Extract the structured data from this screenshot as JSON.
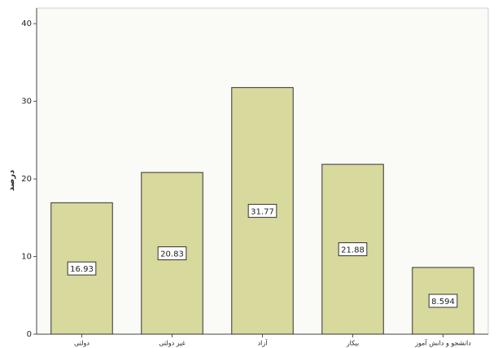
{
  "chart_data": {
    "type": "bar",
    "y_label": "درصد",
    "categories": [
      "دولتی",
      "غیر دولتی",
      "آزاد",
      "بیکار",
      "دانشجو و دانش آموز"
    ],
    "values": [
      16.93,
      20.83,
      31.77,
      21.88,
      8.594
    ],
    "color": "#d8d99c",
    "ylim": [
      0,
      42
    ],
    "yticks": [
      0,
      10,
      20,
      30,
      40
    ]
  }
}
